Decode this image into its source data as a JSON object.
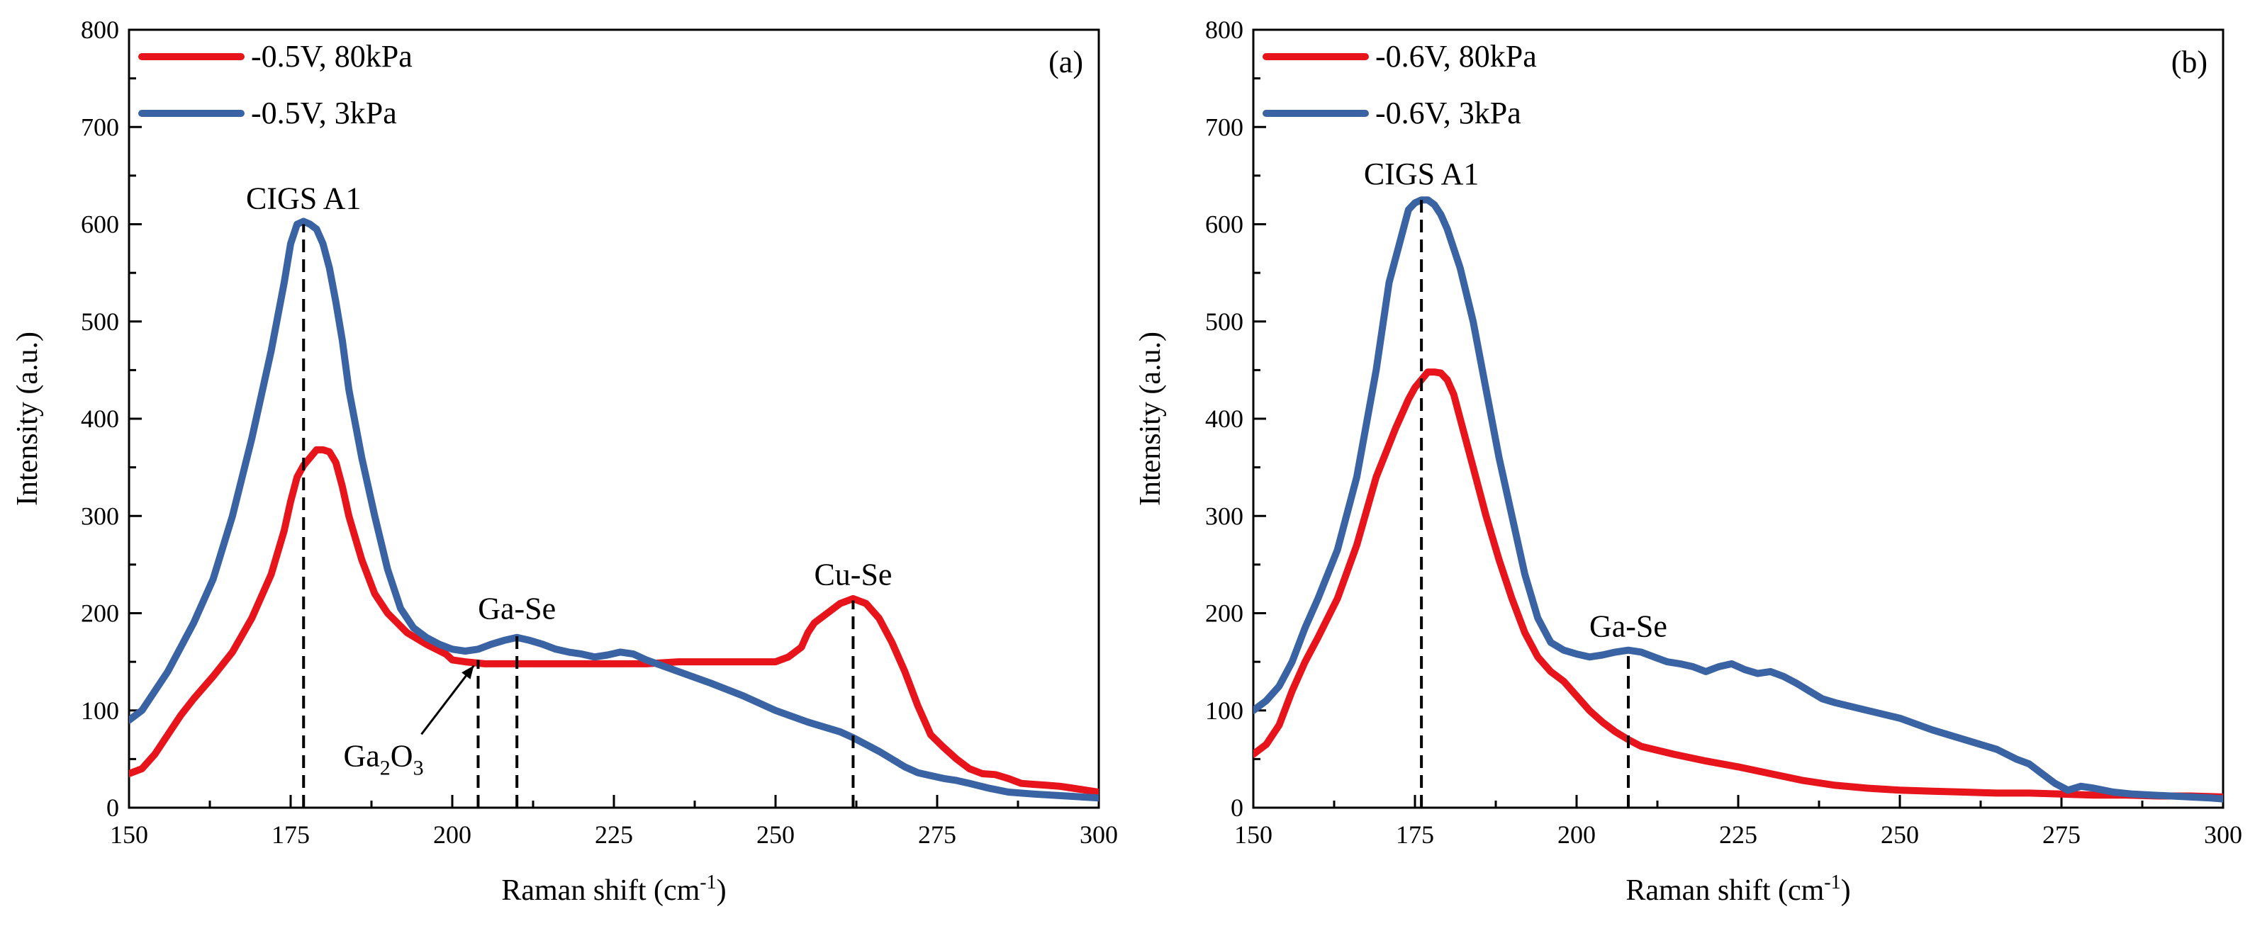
{
  "chart_data": [
    {
      "type": "line",
      "panel_label": "(a)",
      "xlabel": "Raman shift (cm",
      "xlabel_sup": "-1",
      "xlabel_end": ")",
      "ylabel": "Intensity (a.u.)",
      "xlim": [
        150,
        300
      ],
      "ylim": [
        0,
        800
      ],
      "xticks": [
        150,
        175,
        200,
        225,
        250,
        275,
        300
      ],
      "yticks": [
        0,
        100,
        200,
        300,
        400,
        500,
        600,
        700,
        800
      ],
      "legend_position": "top-left",
      "series": [
        {
          "name": "-0.5V, 80kPa",
          "color": "#e8141c",
          "x": [
            150,
            152,
            154,
            156,
            158,
            160,
            163,
            166,
            169,
            172,
            174,
            175,
            176,
            177,
            178,
            179,
            180,
            181,
            182,
            183,
            184,
            186,
            188,
            190,
            193,
            196,
            199,
            200,
            202,
            205,
            210,
            215,
            220,
            225,
            230,
            235,
            240,
            245,
            250,
            252,
            254,
            255,
            256,
            258,
            260,
            262,
            264,
            266,
            268,
            270,
            272,
            274,
            276,
            278,
            280,
            282,
            284,
            286,
            288,
            290,
            292,
            294,
            296,
            298,
            300
          ],
          "y": [
            35,
            40,
            55,
            75,
            95,
            112,
            135,
            160,
            195,
            240,
            285,
            315,
            340,
            352,
            360,
            368,
            368,
            366,
            355,
            330,
            300,
            255,
            220,
            200,
            180,
            168,
            158,
            152,
            150,
            148,
            148,
            148,
            148,
            148,
            148,
            150,
            150,
            150,
            150,
            155,
            165,
            180,
            190,
            200,
            210,
            215,
            210,
            195,
            170,
            140,
            105,
            75,
            62,
            50,
            40,
            35,
            34,
            30,
            25,
            24,
            23,
            22,
            20,
            18,
            16
          ]
        },
        {
          "name": "-0.5V, 3kPa",
          "color": "#3a63a3",
          "x": [
            150,
            152,
            154,
            156,
            158,
            160,
            163,
            166,
            169,
            172,
            174,
            175,
            176,
            177,
            178,
            179,
            180,
            181,
            182,
            183,
            184,
            186,
            188,
            190,
            192,
            194,
            196,
            198,
            200,
            202,
            204,
            206,
            208,
            210,
            212,
            214,
            216,
            218,
            220,
            222,
            224,
            226,
            228,
            230,
            235,
            240,
            245,
            250,
            255,
            260,
            262,
            264,
            266,
            268,
            270,
            272,
            274,
            276,
            278,
            280,
            283,
            286,
            290,
            295,
            300
          ],
          "y": [
            90,
            100,
            120,
            140,
            165,
            190,
            235,
            300,
            380,
            470,
            540,
            580,
            600,
            603,
            600,
            595,
            580,
            555,
            520,
            480,
            430,
            360,
            300,
            245,
            205,
            185,
            175,
            168,
            163,
            161,
            163,
            168,
            172,
            175,
            172,
            168,
            163,
            160,
            158,
            155,
            157,
            160,
            158,
            152,
            140,
            128,
            115,
            100,
            88,
            78,
            72,
            65,
            58,
            50,
            42,
            36,
            33,
            30,
            28,
            25,
            20,
            16,
            14,
            12,
            10
          ]
        }
      ],
      "annotations": [
        {
          "text": "CIGS A1",
          "x": 177,
          "y_top": 600
        },
        {
          "text": "Ga-Se",
          "x": 210,
          "y_top": 178
        },
        {
          "text": "Cu-Se",
          "x": 262,
          "y_top": 213
        },
        {
          "text": "Ga2O3",
          "text_main": "Ga",
          "sub1": "2",
          "mid": "O",
          "sub2": "3",
          "x": 204,
          "y_top": 152,
          "arrow_to": [
            204,
            152
          ]
        }
      ]
    },
    {
      "type": "line",
      "panel_label": "(b)",
      "xlabel": "Raman shift (cm",
      "xlabel_sup": "-1",
      "xlabel_end": ")",
      "ylabel": "Intensity (a.u.)",
      "xlim": [
        150,
        300
      ],
      "ylim": [
        0,
        800
      ],
      "xticks": [
        150,
        175,
        200,
        225,
        250,
        275,
        300
      ],
      "yticks": [
        0,
        100,
        200,
        300,
        400,
        500,
        600,
        700,
        800
      ],
      "legend_position": "top-left",
      "series": [
        {
          "name": "-0.6V, 80kPa",
          "color": "#e8141c",
          "x": [
            150,
            152,
            154,
            156,
            158,
            160,
            163,
            166,
            169,
            172,
            173,
            174,
            175,
            176,
            177,
            178,
            179,
            180,
            181,
            182,
            184,
            186,
            188,
            190,
            192,
            194,
            196,
            198,
            200,
            202,
            204,
            206,
            208,
            210,
            215,
            220,
            225,
            230,
            235,
            240,
            245,
            250,
            255,
            260,
            265,
            270,
            275,
            280,
            285,
            290,
            295,
            300
          ],
          "y": [
            55,
            65,
            85,
            120,
            150,
            175,
            215,
            270,
            340,
            390,
            405,
            420,
            432,
            440,
            448,
            448,
            447,
            440,
            425,
            400,
            350,
            300,
            255,
            215,
            180,
            155,
            140,
            130,
            115,
            100,
            88,
            78,
            70,
            63,
            55,
            48,
            42,
            35,
            28,
            23,
            20,
            18,
            17,
            16,
            15,
            15,
            14,
            13,
            13,
            12,
            12,
            11
          ]
        },
        {
          "name": "-0.6V, 3kPa",
          "color": "#3a63a3",
          "x": [
            150,
            152,
            154,
            156,
            158,
            160,
            163,
            166,
            169,
            171,
            173,
            174,
            175,
            176,
            177,
            178,
            179,
            180,
            181,
            182,
            184,
            186,
            188,
            190,
            192,
            194,
            196,
            198,
            200,
            202,
            204,
            206,
            208,
            210,
            212,
            214,
            216,
            218,
            220,
            222,
            224,
            226,
            228,
            230,
            232,
            234,
            236,
            238,
            240,
            245,
            250,
            255,
            260,
            265,
            268,
            270,
            272,
            274,
            276,
            278,
            280,
            283,
            286,
            289,
            292,
            295,
            298,
            300
          ],
          "y": [
            100,
            110,
            125,
            150,
            185,
            215,
            265,
            340,
            450,
            540,
            590,
            615,
            622,
            625,
            625,
            620,
            610,
            595,
            575,
            555,
            500,
            430,
            360,
            300,
            240,
            195,
            170,
            162,
            158,
            155,
            157,
            160,
            162,
            160,
            155,
            150,
            148,
            145,
            140,
            145,
            148,
            142,
            138,
            140,
            135,
            128,
            120,
            112,
            108,
            100,
            92,
            80,
            70,
            60,
            50,
            45,
            35,
            25,
            18,
            22,
            20,
            16,
            14,
            13,
            12,
            11,
            10,
            9
          ]
        }
      ],
      "annotations": [
        {
          "text": "CIGS A1",
          "x": 176,
          "y_top": 625
        },
        {
          "text": "Ga-Se",
          "x": 208,
          "y_top": 160
        }
      ]
    }
  ]
}
